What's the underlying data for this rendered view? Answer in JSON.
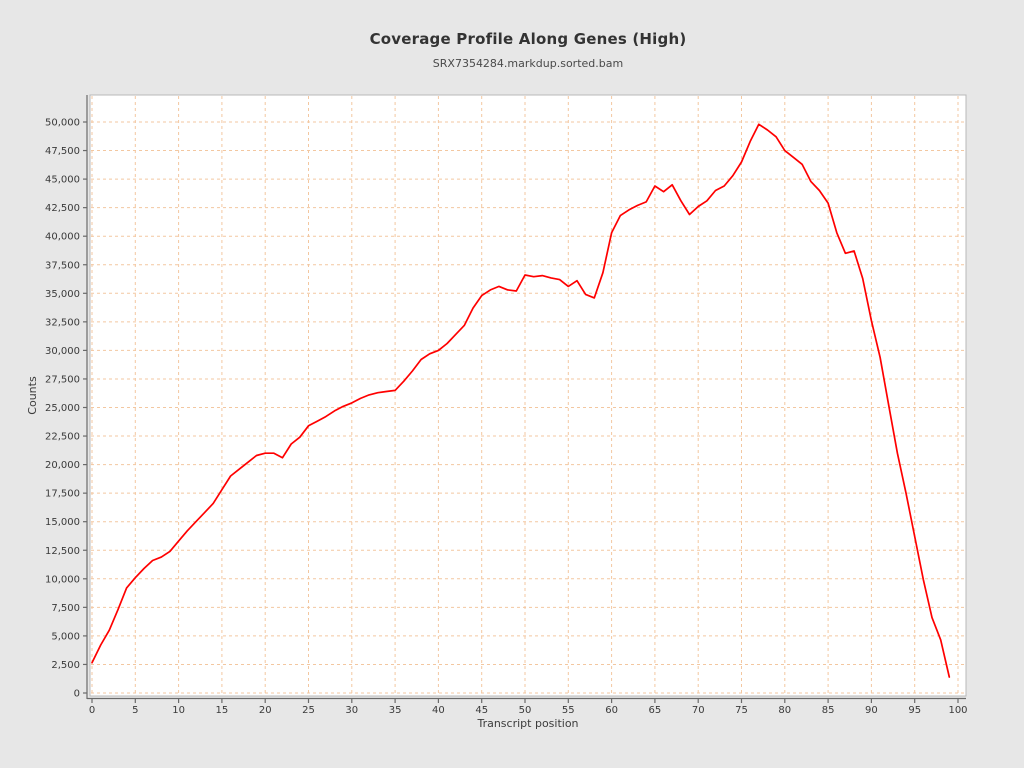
{
  "chart_data": {
    "type": "line",
    "title": "Coverage Profile Along Genes (High)",
    "subtitle": "SRX7354284.markdup.sorted.bam",
    "xlabel": "Transcript position",
    "ylabel": "Counts",
    "xlim": [
      0,
      100
    ],
    "ylim": [
      0,
      50000
    ],
    "grid": true,
    "grid_style": "dashed",
    "legend_position": "none",
    "x_ticks": [
      0,
      5,
      10,
      15,
      20,
      25,
      30,
      35,
      40,
      45,
      50,
      55,
      60,
      65,
      70,
      75,
      80,
      85,
      90,
      95,
      100
    ],
    "y_ticks": [
      0,
      2500,
      5000,
      7500,
      10000,
      12500,
      15000,
      17500,
      20000,
      22500,
      25000,
      27500,
      30000,
      32500,
      35000,
      37500,
      40000,
      42500,
      45000,
      47500,
      50000
    ],
    "y_tick_labels": [
      "0",
      "2,500",
      "5,000",
      "7,500",
      "10,000",
      "12,500",
      "15,000",
      "17,500",
      "20,000",
      "22,500",
      "25,000",
      "27,500",
      "30,000",
      "32,500",
      "35,000",
      "37,500",
      "40,000",
      "42,500",
      "45,000",
      "47,500",
      "50,000"
    ],
    "series": [
      {
        "name": "coverage",
        "color": "#ff0000",
        "x_start": 0,
        "x_step": 1,
        "values": [
          2650,
          4200,
          5500,
          7300,
          9200,
          10100,
          10900,
          11600,
          11900,
          12400,
          13300,
          14200,
          15000,
          15800,
          16600,
          17800,
          19000,
          19600,
          20200,
          20800,
          21000,
          21000,
          20600,
          21800,
          22400,
          23400,
          23800,
          24200,
          24700,
          25100,
          25400,
          25800,
          26100,
          26300,
          26400,
          26500,
          27300,
          28200,
          29200,
          29700,
          30000,
          30600,
          31400,
          32200,
          33700,
          34800,
          35300,
          35600,
          35300,
          35200,
          36600,
          36450,
          36550,
          36350,
          36200,
          35600,
          36100,
          34900,
          34600,
          36800,
          40300,
          41800,
          42300,
          42700,
          43000,
          44400,
          43900,
          44500,
          43100,
          41900,
          42600,
          43100,
          44000,
          44400,
          45300,
          46500,
          48300,
          49800,
          49300,
          48700,
          47500,
          46900,
          46300,
          44800,
          44000,
          42900,
          40300,
          38500,
          38700,
          36300,
          32600,
          29400,
          25200,
          21000,
          17500,
          13700,
          9900,
          6600,
          4650,
          1400
        ]
      }
    ],
    "colors": {
      "background": "#e7e7e7",
      "plot_background": "#ffffff",
      "grid": "#f3c7a0",
      "plot_border": "#b8b8b8",
      "axis": "#6a6a6a",
      "line": "#ff0000"
    }
  }
}
